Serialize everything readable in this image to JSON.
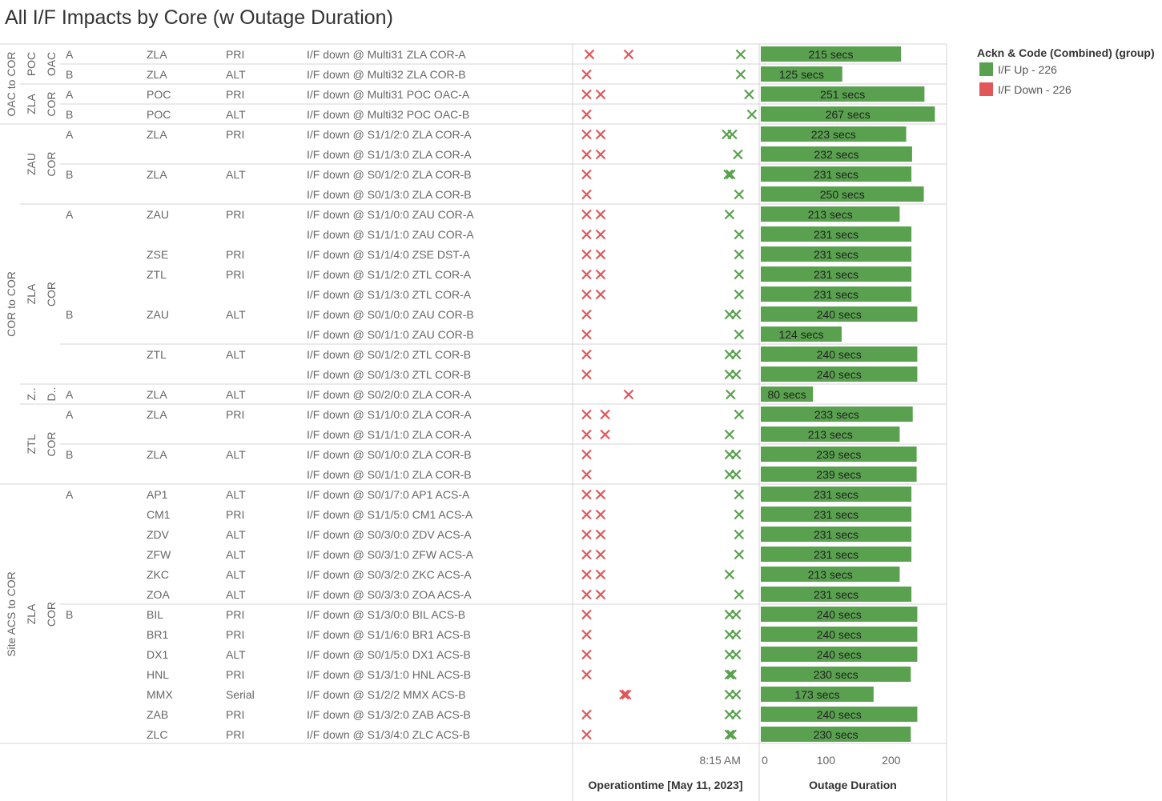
{
  "chart_data": {
    "type": "bar",
    "title": "All I/F Impacts by Core (w Outage Duration)",
    "colors": {
      "up": "#59a14f",
      "down": "#e15759"
    },
    "legend": {
      "title": "Ackn & Code (Combined) (group)",
      "items": [
        {
          "label": "I/F Up - 226",
          "color": "#59a14f"
        },
        {
          "label": "I/F Down - 226",
          "color": "#e15759"
        }
      ]
    },
    "groups": [
      {
        "label": "OAC to COR",
        "start": 0,
        "end": 4
      },
      {
        "label": "COR to COR",
        "start": 4,
        "end": 22
      },
      {
        "label": "Site ACS to COR",
        "start": 22,
        "end": 35
      }
    ],
    "sites": [
      {
        "label": "POC",
        "start": 0,
        "end": 2
      },
      {
        "label": "ZLA",
        "start": 2,
        "end": 4
      },
      {
        "label": "ZAU",
        "start": 4,
        "end": 8
      },
      {
        "label": "ZLA",
        "start": 8,
        "end": 17
      },
      {
        "label": "Z..",
        "start": 17,
        "end": 18
      },
      {
        "label": "ZTL",
        "start": 18,
        "end": 22
      },
      {
        "label": "ZLA",
        "start": 22,
        "end": 35
      }
    ],
    "cores": [
      {
        "label": "OAC",
        "start": 0,
        "end": 2
      },
      {
        "label": "COR",
        "start": 2,
        "end": 4
      },
      {
        "label": "COR",
        "start": 4,
        "end": 8
      },
      {
        "label": "COR",
        "start": 8,
        "end": 17
      },
      {
        "label": "D..",
        "start": 17,
        "end": 18
      },
      {
        "label": "COR",
        "start": 18,
        "end": 22
      },
      {
        "label": "COR",
        "start": 22,
        "end": 35
      }
    ],
    "side_blocks": [
      {
        "start": 0,
        "end": 1
      },
      {
        "start": 1,
        "end": 2
      },
      {
        "start": 2,
        "end": 3
      },
      {
        "start": 3,
        "end": 4
      },
      {
        "start": 4,
        "end": 6
      },
      {
        "start": 6,
        "end": 8
      },
      {
        "start": 8,
        "end": 15
      },
      {
        "start": 15,
        "end": 17
      },
      {
        "start": 17,
        "end": 18
      },
      {
        "start": 18,
        "end": 20
      },
      {
        "start": 20,
        "end": 22
      },
      {
        "start": 22,
        "end": 28
      },
      {
        "start": 28,
        "end": 35
      }
    ],
    "rows": [
      {
        "side": "A",
        "site": "ZLA",
        "type": "PRI",
        "interface": "I/F down @ Multi31 ZLA COR-A",
        "down": [
          0.3,
          1.0
        ],
        "up": [
          3.0
        ],
        "duration": 215
      },
      {
        "side": "B",
        "site": "ZLA",
        "type": "ALT",
        "interface": "I/F down @ Multi32 ZLA COR-B",
        "down": [
          0.25
        ],
        "up": [
          3.0
        ],
        "duration": 125
      },
      {
        "side": "A",
        "site": "POC",
        "type": "PRI",
        "interface": "I/F down @ Multi31 POC OAC-A",
        "down": [
          0.25,
          0.5
        ],
        "up": [
          3.15
        ],
        "duration": 251
      },
      {
        "side": "B",
        "site": "POC",
        "type": "ALT",
        "interface": "I/F down @ Multi32 POC OAC-B",
        "down": [
          0.25
        ],
        "up": [
          3.2
        ],
        "duration": 267
      },
      {
        "side": "A",
        "site": "ZLA",
        "type": "PRI",
        "interface": "I/F down @ S1/1/2:0 ZLA COR-A",
        "down": [
          0.25,
          0.5
        ],
        "up": [
          2.75,
          2.85
        ],
        "duration": 223
      },
      {
        "side": "",
        "site": "",
        "type": "",
        "interface": "I/F down @ S1/1/3:0 ZLA COR-A",
        "down": [
          0.25,
          0.5
        ],
        "up": [
          2.95
        ],
        "duration": 232
      },
      {
        "side": "B",
        "site": "ZLA",
        "type": "ALT",
        "interface": "I/F down @ S0/1/2:0 ZLA COR-B",
        "down": [
          0.25
        ],
        "up": [
          2.78,
          2.82
        ],
        "duration": 231
      },
      {
        "side": "",
        "site": "",
        "type": "",
        "interface": "I/F down @ S0/1/3:0 ZLA COR-B",
        "down": [
          0.25
        ],
        "up": [
          2.97
        ],
        "duration": 250
      },
      {
        "side": "A",
        "site": "ZAU",
        "type": "PRI",
        "interface": "I/F down @ S1/1/0:0 ZAU COR-A",
        "down": [
          0.25,
          0.5
        ],
        "up": [
          2.8
        ],
        "duration": 213
      },
      {
        "side": "",
        "site": "",
        "type": "",
        "interface": "I/F down @ S1/1/1:0 ZAU COR-A",
        "down": [
          0.25,
          0.5
        ],
        "up": [
          2.97
        ],
        "duration": 231
      },
      {
        "side": "",
        "site": "ZSE",
        "type": "PRI",
        "interface": "I/F down @ S1/1/4:0 ZSE DST-A",
        "down": [
          0.25,
          0.5
        ],
        "up": [
          2.97
        ],
        "duration": 231
      },
      {
        "side": "",
        "site": "ZTL",
        "type": "PRI",
        "interface": "I/F down @ S1/1/2:0 ZTL COR-A",
        "down": [
          0.25,
          0.5
        ],
        "up": [
          2.97
        ],
        "duration": 231
      },
      {
        "side": "",
        "site": "",
        "type": "",
        "interface": "I/F down @ S1/1/3:0 ZTL COR-A",
        "down": [
          0.25,
          0.5
        ],
        "up": [
          2.97
        ],
        "duration": 231
      },
      {
        "side": "B",
        "site": "ZAU",
        "type": "ALT",
        "interface": "I/F down @ S0/1/0:0 ZAU COR-B",
        "down": [
          0.25
        ],
        "up": [
          2.8,
          2.92
        ],
        "duration": 240
      },
      {
        "side": "",
        "site": "",
        "type": "",
        "interface": "I/F down @ S0/1/1:0 ZAU COR-B",
        "down": [
          0.25
        ],
        "up": [
          2.97
        ],
        "duration": 124
      },
      {
        "side": "",
        "site": "ZTL",
        "type": "ALT",
        "interface": "I/F down @ S0/1/2:0 ZTL COR-B",
        "down": [
          0.25
        ],
        "up": [
          2.8,
          2.92
        ],
        "duration": 240
      },
      {
        "side": "",
        "site": "",
        "type": "",
        "interface": "I/F down @ S0/1/3:0 ZTL COR-B",
        "down": [
          0.25
        ],
        "up": [
          2.8,
          2.92
        ],
        "duration": 240
      },
      {
        "side": "A",
        "site": "ZLA",
        "type": "ALT",
        "interface": "I/F down @ S0/2/0:0 ZLA COR-A",
        "down": [
          1.0
        ],
        "up": [
          2.82
        ],
        "duration": 80
      },
      {
        "side": "A",
        "site": "ZLA",
        "type": "PRI",
        "interface": "I/F down @ S1/1/0:0 ZLA COR-A",
        "down": [
          0.25,
          0.58
        ],
        "up": [
          2.97
        ],
        "duration": 233
      },
      {
        "side": "",
        "site": "",
        "type": "",
        "interface": "I/F down @ S1/1/1:0 ZLA COR-A",
        "down": [
          0.25,
          0.58
        ],
        "up": [
          2.8
        ],
        "duration": 213
      },
      {
        "side": "B",
        "site": "ZLA",
        "type": "ALT",
        "interface": "I/F down @ S0/1/0:0 ZLA COR-B",
        "down": [
          0.25
        ],
        "up": [
          2.8,
          2.92
        ],
        "duration": 239
      },
      {
        "side": "",
        "site": "",
        "type": "",
        "interface": "I/F down @ S0/1/1:0 ZLA COR-B",
        "down": [
          0.25
        ],
        "up": [
          2.8,
          2.92
        ],
        "duration": 239
      },
      {
        "side": "A",
        "site": "AP1",
        "type": "ALT",
        "interface": "I/F down @ S0/1/7:0 AP1 ACS-A",
        "down": [
          0.25,
          0.5
        ],
        "up": [
          2.97
        ],
        "duration": 231
      },
      {
        "side": "",
        "site": "CM1",
        "type": "PRI",
        "interface": "I/F down @ S1/1/5:0 CM1 ACS-A",
        "down": [
          0.25,
          0.5
        ],
        "up": [
          2.97
        ],
        "duration": 231
      },
      {
        "side": "",
        "site": "ZDV",
        "type": "ALT",
        "interface": "I/F down @ S0/3/0:0 ZDV ACS-A",
        "down": [
          0.25,
          0.5
        ],
        "up": [
          2.97
        ],
        "duration": 231
      },
      {
        "side": "",
        "site": "ZFW",
        "type": "ALT",
        "interface": "I/F down @ S0/3/1:0 ZFW ACS-A",
        "down": [
          0.25,
          0.5
        ],
        "up": [
          2.97
        ],
        "duration": 231
      },
      {
        "side": "",
        "site": "ZKC",
        "type": "ALT",
        "interface": "I/F down @ S0/3/2:0 ZKC ACS-A",
        "down": [
          0.25,
          0.5
        ],
        "up": [
          2.8
        ],
        "duration": 213
      },
      {
        "side": "",
        "site": "ZOA",
        "type": "ALT",
        "interface": "I/F down @ S0/3/3:0 ZOA ACS-A",
        "down": [
          0.25,
          0.5
        ],
        "up": [
          2.97
        ],
        "duration": 231
      },
      {
        "side": "B",
        "site": "BIL",
        "type": "PRI",
        "interface": "I/F down @ S1/3/0:0 BIL ACS-B",
        "down": [
          0.25
        ],
        "up": [
          2.8,
          2.92
        ],
        "duration": 240
      },
      {
        "side": "",
        "site": "BR1",
        "type": "PRI",
        "interface": "I/F down @ S1/1/6:0 BR1 ACS-B",
        "down": [
          0.25
        ],
        "up": [
          2.8,
          2.92
        ],
        "duration": 240
      },
      {
        "side": "",
        "site": "DX1",
        "type": "ALT",
        "interface": "I/F down @ S0/1/5:0 DX1 ACS-B",
        "down": [
          0.25
        ],
        "up": [
          2.8,
          2.92
        ],
        "duration": 240
      },
      {
        "side": "",
        "site": "HNL",
        "type": "PRI",
        "interface": "I/F down @ S1/3/1:0 HNL ACS-B",
        "down": [
          0.25
        ],
        "up": [
          2.8,
          2.84
        ],
        "duration": 230
      },
      {
        "side": "",
        "site": "MMX",
        "type": "Serial",
        "interface": "I/F down @ S1/2/2 MMX ACS-B",
        "down": [
          0.92,
          0.96
        ],
        "up": [
          2.8,
          2.92
        ],
        "duration": 173
      },
      {
        "side": "",
        "site": "ZAB",
        "type": "PRI",
        "interface": "I/F down @ S1/3/2:0 ZAB ACS-B",
        "down": [
          0.25
        ],
        "up": [
          2.8,
          2.92
        ],
        "duration": 240
      },
      {
        "side": "",
        "site": "ZLC",
        "type": "PRI",
        "interface": "I/F down @ S1/3/4:0 ZLC ACS-B",
        "down": [
          0.25
        ],
        "up": [
          2.8,
          2.84
        ],
        "duration": 230
      }
    ],
    "time_axis": {
      "title": "Operationtime [May 11, 2023]",
      "tick_label": "8:15 AM",
      "tick_at": 3.0,
      "range": [
        0,
        3.33
      ]
    },
    "duration_axis": {
      "title": "Outage Duration",
      "ticks": [
        0,
        100,
        200
      ],
      "range": [
        0,
        280
      ],
      "bar_label_suffix": " secs"
    }
  }
}
